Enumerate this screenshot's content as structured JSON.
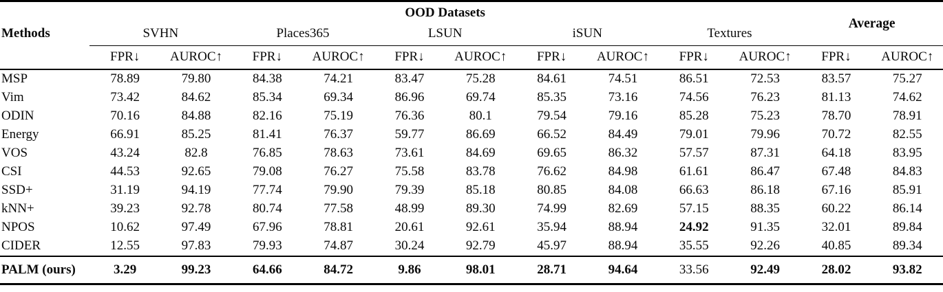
{
  "table": {
    "header": {
      "methods_label": "Methods",
      "group_title": "OOD Datasets",
      "average_label": "Average",
      "datasets": [
        "SVHN",
        "Places365",
        "LSUN",
        "iSUN",
        "Textures"
      ],
      "metrics": [
        "FPR↓",
        "AUROC↑"
      ]
    },
    "rows": [
      {
        "method": "MSP",
        "values": [
          "78.89",
          "79.80",
          "84.38",
          "74.21",
          "83.47",
          "75.28",
          "84.61",
          "74.51",
          "86.51",
          "72.53",
          "83.57",
          "75.27"
        ],
        "bold": []
      },
      {
        "method": "Vim",
        "values": [
          "73.42",
          "84.62",
          "85.34",
          "69.34",
          "86.96",
          "69.74",
          "85.35",
          "73.16",
          "74.56",
          "76.23",
          "81.13",
          "74.62"
        ],
        "bold": []
      },
      {
        "method": "ODIN",
        "values": [
          "70.16",
          "84.88",
          "82.16",
          "75.19",
          "76.36",
          "80.1",
          "79.54",
          "79.16",
          "85.28",
          "75.23",
          "78.70",
          "78.91"
        ],
        "bold": []
      },
      {
        "method": "Energy",
        "values": [
          "66.91",
          "85.25",
          "81.41",
          "76.37",
          "59.77",
          "86.69",
          "66.52",
          "84.49",
          "79.01",
          "79.96",
          "70.72",
          "82.55"
        ],
        "bold": []
      },
      {
        "method": "VOS",
        "values": [
          "43.24",
          "82.8",
          "76.85",
          "78.63",
          "73.61",
          "84.69",
          "69.65",
          "86.32",
          "57.57",
          "87.31",
          "64.18",
          "83.95"
        ],
        "bold": []
      },
      {
        "method": "CSI",
        "values": [
          "44.53",
          "92.65",
          "79.08",
          "76.27",
          "75.58",
          "83.78",
          "76.62",
          "84.98",
          "61.61",
          "86.47",
          "67.48",
          "84.83"
        ],
        "bold": []
      },
      {
        "method": "SSD+",
        "values": [
          "31.19",
          "94.19",
          "77.74",
          "79.90",
          "79.39",
          "85.18",
          "80.85",
          "84.08",
          "66.63",
          "86.18",
          "67.16",
          "85.91"
        ],
        "bold": []
      },
      {
        "method": "kNN+",
        "values": [
          "39.23",
          "92.78",
          "80.74",
          "77.58",
          "48.99",
          "89.30",
          "74.99",
          "82.69",
          "57.15",
          "88.35",
          "60.22",
          "86.14"
        ],
        "bold": []
      },
      {
        "method": "NPOS",
        "values": [
          "10.62",
          "97.49",
          "67.96",
          "78.81",
          "20.61",
          "92.61",
          "35.94",
          "88.94",
          "24.92",
          "91.35",
          "32.01",
          "89.84"
        ],
        "bold": [
          8
        ]
      },
      {
        "method": "CIDER",
        "values": [
          "12.55",
          "97.83",
          "79.93",
          "74.87",
          "30.24",
          "92.79",
          "45.97",
          "88.94",
          "35.55",
          "92.26",
          "40.85",
          "89.34"
        ],
        "bold": []
      },
      {
        "method": "PALM (ours)",
        "method_bold": true,
        "separator_above": true,
        "values": [
          "3.29",
          "99.23",
          "64.66",
          "84.72",
          "9.86",
          "98.01",
          "28.71",
          "94.64",
          "33.56",
          "92.49",
          "28.02",
          "93.82"
        ],
        "bold": [
          0,
          1,
          2,
          3,
          4,
          5,
          6,
          7,
          9,
          10,
          11
        ]
      }
    ]
  },
  "colors": {
    "text": "#000000",
    "background": "#ffffff",
    "rule": "#000000"
  }
}
